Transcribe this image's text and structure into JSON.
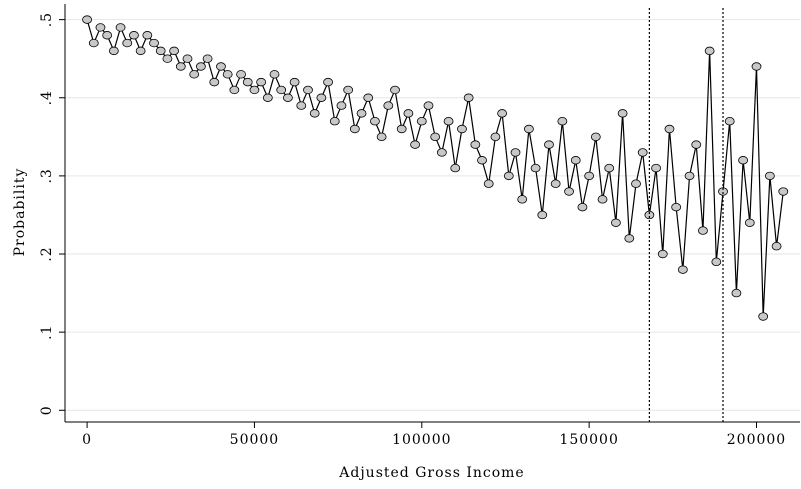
{
  "chart_data": {
    "type": "connected-scatter",
    "x_label": "Adjusted Gross Income",
    "y_label": "Probability",
    "x": [
      0,
      2000,
      4000,
      6000,
      8000,
      10000,
      12000,
      14000,
      16000,
      18000,
      20000,
      22000,
      24000,
      26000,
      28000,
      30000,
      32000,
      34000,
      36000,
      38000,
      40000,
      42000,
      44000,
      46000,
      48000,
      50000,
      52000,
      54000,
      56000,
      58000,
      60000,
      62000,
      64000,
      66000,
      68000,
      70000,
      72000,
      74000,
      76000,
      78000,
      80000,
      82000,
      84000,
      86000,
      88000,
      90000,
      92000,
      94000,
      96000,
      98000,
      100000,
      102000,
      104000,
      106000,
      108000,
      110000,
      112000,
      114000,
      116000,
      118000,
      120000,
      122000,
      124000,
      126000,
      128000,
      130000,
      132000,
      134000,
      136000,
      138000,
      140000,
      142000,
      144000,
      146000,
      148000,
      150000,
      152000,
      154000,
      156000,
      158000,
      160000,
      162000,
      164000,
      166000,
      168000,
      170000,
      172000,
      174000,
      176000,
      178000,
      180000,
      182000,
      184000,
      186000,
      188000,
      190000,
      192000,
      194000,
      196000,
      198000,
      200000,
      202000,
      204000,
      206000,
      208000
    ],
    "values": [
      0.5,
      0.47,
      0.49,
      0.48,
      0.46,
      0.49,
      0.47,
      0.48,
      0.46,
      0.48,
      0.47,
      0.46,
      0.45,
      0.46,
      0.44,
      0.45,
      0.43,
      0.44,
      0.45,
      0.42,
      0.44,
      0.43,
      0.41,
      0.43,
      0.42,
      0.41,
      0.42,
      0.4,
      0.43,
      0.41,
      0.4,
      0.42,
      0.39,
      0.41,
      0.38,
      0.4,
      0.42,
      0.37,
      0.39,
      0.41,
      0.36,
      0.38,
      0.4,
      0.37,
      0.35,
      0.39,
      0.41,
      0.36,
      0.38,
      0.34,
      0.37,
      0.39,
      0.35,
      0.33,
      0.37,
      0.31,
      0.36,
      0.4,
      0.34,
      0.32,
      0.29,
      0.35,
      0.38,
      0.3,
      0.33,
      0.27,
      0.36,
      0.31,
      0.25,
      0.34,
      0.29,
      0.37,
      0.28,
      0.32,
      0.26,
      0.3,
      0.35,
      0.27,
      0.31,
      0.24,
      0.38,
      0.22,
      0.29,
      0.33,
      0.25,
      0.31,
      0.2,
      0.36,
      0.26,
      0.18,
      0.3,
      0.34,
      0.23,
      0.46,
      0.19,
      0.28,
      0.37,
      0.15,
      0.32,
      0.24,
      0.44,
      0.12,
      0.3,
      0.21,
      0.28
    ],
    "marker_color": "#c8c8c8",
    "line_color": "#000000",
    "xlim": [
      -6600,
      213000
    ],
    "ylim": [
      -0.015,
      0.52
    ],
    "xticks": [
      0,
      50000,
      100000,
      150000,
      200000
    ],
    "yticks": [
      0,
      {
        "value": 0.1,
        "label": ".1"
      },
      {
        "value": 0.2,
        "label": ".2"
      },
      {
        "value": 0.3,
        "label": ".3"
      },
      {
        "value": 0.4,
        "label": ".4"
      },
      {
        "value": 0.5,
        "label": ".5"
      }
    ],
    "xlines": [
      168000,
      190000
    ],
    "grid": true
  }
}
